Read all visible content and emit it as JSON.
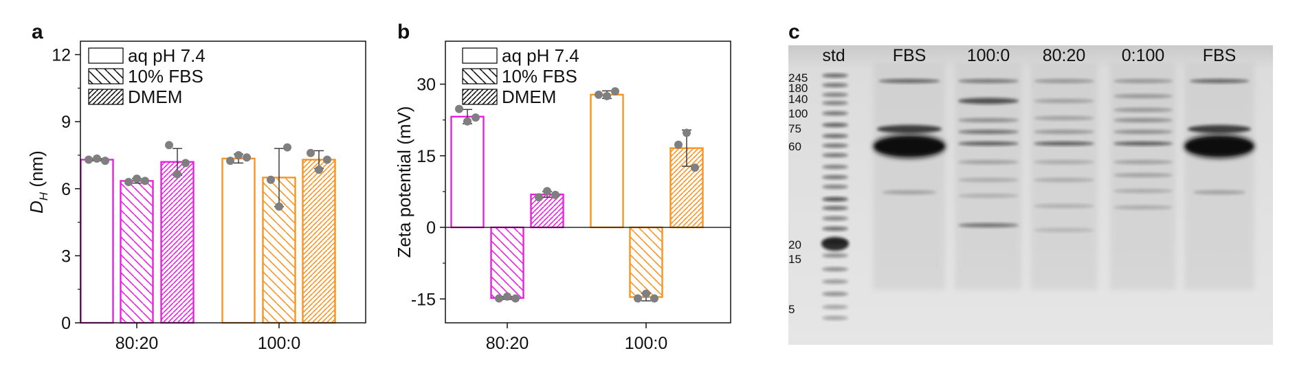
{
  "colors": {
    "magenta": "#E91EE0",
    "orange": "#F7931E",
    "point": "#7f7f7f",
    "axis": "#111111"
  },
  "chart_data": [
    {
      "panel": "a",
      "type": "bar",
      "ylabel_main": "D",
      "ylabel_sub": "H",
      "ylabel_unit": " (nm)",
      "ylim": [
        0,
        12.6
      ],
      "yticks": [
        0,
        3,
        6,
        9,
        12
      ],
      "ytick_labels": [
        "0",
        "3",
        "6",
        "9",
        "12"
      ],
      "zero_line": false,
      "categories": [
        "80:20",
        "100:0"
      ],
      "category_colors": [
        "magenta",
        "orange"
      ],
      "legend": [
        "aq pH 7.4",
        "10% FBS",
        "DMEM"
      ],
      "series": [
        {
          "name": "aq pH 7.4",
          "pattern": "none",
          "values": [
            7.3,
            7.35
          ],
          "err": [
            0.05,
            0.2
          ],
          "points": [
            [
              7.3,
              7.35,
              7.25
            ],
            [
              7.25,
              7.5,
              7.4
            ]
          ]
        },
        {
          "name": "10% FBS",
          "pattern": "sparse",
          "values": [
            6.35,
            6.5
          ],
          "err": [
            0.1,
            1.3
          ],
          "points": [
            [
              6.3,
              6.45,
              6.35
            ],
            [
              6.4,
              5.2,
              7.85
            ]
          ]
        },
        {
          "name": "DMEM",
          "pattern": "dense",
          "values": [
            7.2,
            7.3
          ],
          "err": [
            0.6,
            0.4
          ],
          "points": [
            [
              7.95,
              6.65,
              7.15
            ],
            [
              7.6,
              6.85,
              7.3
            ]
          ]
        }
      ]
    },
    {
      "panel": "b",
      "type": "bar",
      "ylabel_main": "Zeta potential (mV)",
      "ylabel_sub": "",
      "ylabel_unit": "",
      "ylim": [
        -20,
        39
      ],
      "yticks": [
        -15,
        0,
        15,
        30
      ],
      "ytick_labels": [
        "-15",
        "0",
        "15",
        "30"
      ],
      "zero_line": true,
      "categories": [
        "80:20",
        "100:0"
      ],
      "category_colors": [
        "magenta",
        "orange"
      ],
      "legend": [
        "aq pH 7.4",
        "10% FBS",
        "DMEM"
      ],
      "series": [
        {
          "name": "aq pH 7.4",
          "pattern": "none",
          "values": [
            23.2,
            27.8
          ],
          "err": [
            1.5,
            0.8
          ],
          "points": [
            [
              24.8,
              22.2,
              23.0
            ],
            [
              27.8,
              27.5,
              28.5
            ]
          ]
        },
        {
          "name": "10% FBS",
          "pattern": "sparse",
          "values": [
            -14.8,
            -14.6
          ],
          "err": [
            0.3,
            0.8
          ],
          "points": [
            [
              -14.9,
              -14.5,
              -14.9
            ],
            [
              -14.9,
              -13.9,
              -14.9
            ]
          ]
        },
        {
          "name": "DMEM",
          "pattern": "dense",
          "values": [
            6.9,
            16.6
          ],
          "err": [
            0.6,
            3.8
          ],
          "points": [
            [
              6.3,
              7.6,
              6.8
            ],
            [
              17.3,
              19.8,
              12.5
            ]
          ]
        }
      ]
    }
  ],
  "gel": {
    "panel": "c",
    "lanes": [
      "std",
      "FBS",
      "100:0",
      "80:20",
      "0:100",
      "FBS"
    ],
    "mw_markers": [
      "245",
      "180",
      "140",
      "100",
      "75",
      "60",
      "20",
      "15",
      "5"
    ]
  }
}
